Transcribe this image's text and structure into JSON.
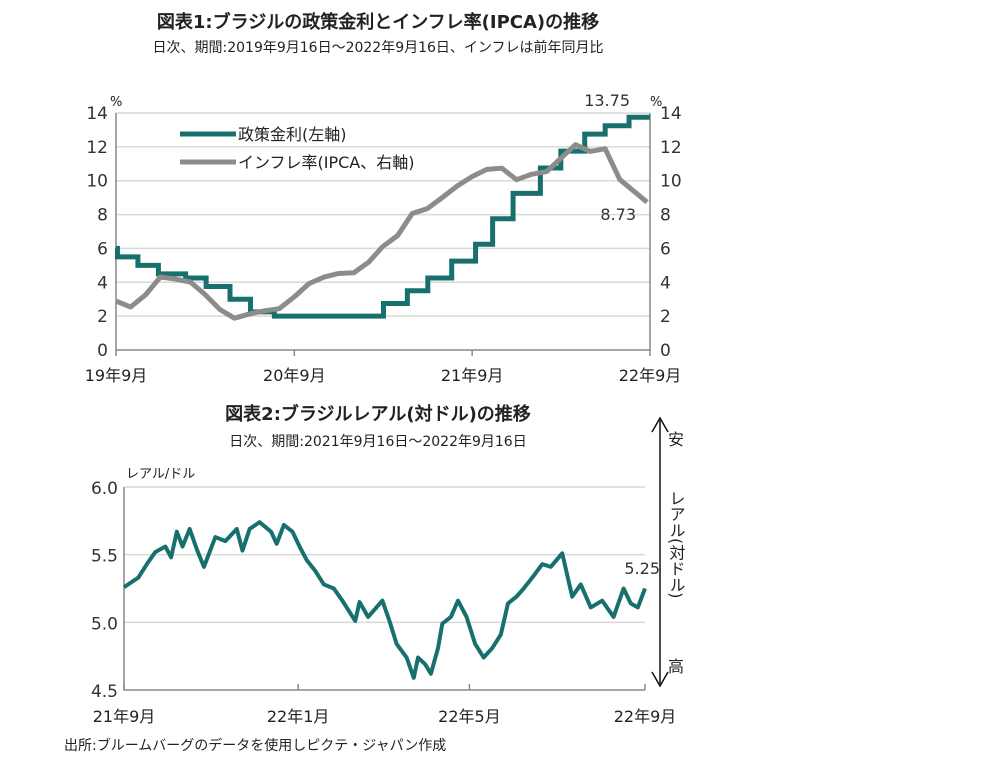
{
  "colors": {
    "policy_rate": "#17706e",
    "inflation": "#8c8c8c",
    "brl": "#17706e"
  },
  "chart_data": [
    {
      "type": "line",
      "title": "図表1:ブラジルの政策金利とインフレ率(IPCA)の推移",
      "subtitle": "日次、期間:2019年9月16日～2022年9月16日、インフレは前年同月比",
      "left_unit": "%",
      "right_unit": "%",
      "ylim": [
        0,
        14
      ],
      "yticks": [
        "0",
        "2",
        "4",
        "6",
        "8",
        "10",
        "12",
        "14"
      ],
      "xlim": [
        "2019-09-16",
        "2022-09-16"
      ],
      "xticks": [
        {
          "date": "2019-09-16",
          "label": "19年9月"
        },
        {
          "date": "2020-09-16",
          "label": "20年9月"
        },
        {
          "date": "2021-09-16",
          "label": "21年9月"
        },
        {
          "date": "2022-09-16",
          "label": "22年9月"
        }
      ],
      "grid": true,
      "legend_position": "top-left",
      "series": [
        {
          "name": "政策金利(左軸)",
          "axis": "left",
          "style": "step",
          "points": [
            [
              "2019-09-16",
              6.0
            ],
            [
              "2019-09-19",
              5.5
            ],
            [
              "2019-10-31",
              5.0
            ],
            [
              "2019-12-12",
              4.5
            ],
            [
              "2020-02-06",
              4.25
            ],
            [
              "2020-03-19",
              3.75
            ],
            [
              "2020-05-07",
              3.0
            ],
            [
              "2020-06-18",
              2.25
            ],
            [
              "2020-08-06",
              2.0
            ],
            [
              "2021-03-18",
              2.75
            ],
            [
              "2021-05-06",
              3.5
            ],
            [
              "2021-06-17",
              4.25
            ],
            [
              "2021-08-05",
              5.25
            ],
            [
              "2021-09-23",
              6.25
            ],
            [
              "2021-10-28",
              7.75
            ],
            [
              "2021-12-09",
              9.25
            ],
            [
              "2022-02-03",
              10.75
            ],
            [
              "2022-03-17",
              11.75
            ],
            [
              "2022-05-05",
              12.75
            ],
            [
              "2022-06-16",
              13.25
            ],
            [
              "2022-08-04",
              13.75
            ],
            [
              "2022-09-16",
              13.75
            ]
          ]
        },
        {
          "name": "インフレ率(IPCA、右軸)",
          "axis": "right",
          "style": "line",
          "points": [
            [
              "2019-09-16",
              2.89
            ],
            [
              "2019-10-16",
              2.54
            ],
            [
              "2019-11-16",
              3.27
            ],
            [
              "2019-12-16",
              4.31
            ],
            [
              "2020-01-16",
              4.19
            ],
            [
              "2020-02-16",
              4.01
            ],
            [
              "2020-03-16",
              3.3
            ],
            [
              "2020-04-16",
              2.4
            ],
            [
              "2020-05-16",
              1.88
            ],
            [
              "2020-06-16",
              2.13
            ],
            [
              "2020-07-16",
              2.31
            ],
            [
              "2020-08-16",
              2.44
            ],
            [
              "2020-09-16",
              3.14
            ],
            [
              "2020-10-16",
              3.92
            ],
            [
              "2020-11-16",
              4.31
            ],
            [
              "2020-12-16",
              4.52
            ],
            [
              "2021-01-16",
              4.56
            ],
            [
              "2021-02-16",
              5.2
            ],
            [
              "2021-03-16",
              6.1
            ],
            [
              "2021-04-16",
              6.76
            ],
            [
              "2021-05-16",
              8.06
            ],
            [
              "2021-06-16",
              8.35
            ],
            [
              "2021-07-16",
              8.99
            ],
            [
              "2021-08-16",
              9.68
            ],
            [
              "2021-09-16",
              10.25
            ],
            [
              "2021-10-16",
              10.67
            ],
            [
              "2021-11-16",
              10.74
            ],
            [
              "2021-12-16",
              10.06
            ],
            [
              "2022-01-16",
              10.38
            ],
            [
              "2022-02-16",
              10.54
            ],
            [
              "2022-03-16",
              11.3
            ],
            [
              "2022-04-16",
              12.13
            ],
            [
              "2022-05-16",
              11.73
            ],
            [
              "2022-06-16",
              11.89
            ],
            [
              "2022-07-16",
              10.07
            ],
            [
              "2022-09-10",
              8.73
            ]
          ]
        }
      ],
      "annotations": [
        "13.75",
        "8.73"
      ]
    },
    {
      "type": "line",
      "title": "図表2:ブラジルレアル(対ドル)の推移",
      "subtitle": "日次、期間:2021年9月16日～2022年9月16日",
      "ylabel": "レアル/ドル",
      "ylim": [
        4.5,
        6.0
      ],
      "yticks": [
        "4.5",
        "5.0",
        "5.5",
        "6.0"
      ],
      "xlim": [
        "2021-09-16",
        "2022-09-16"
      ],
      "xticks": [
        {
          "date": "2021-09-16",
          "label": "21年9月"
        },
        {
          "date": "2022-01-16",
          "label": "22年1月"
        },
        {
          "date": "2022-05-16",
          "label": "22年5月"
        },
        {
          "date": "2022-09-16",
          "label": "22年9月"
        }
      ],
      "grid": true,
      "series": [
        {
          "points": [
            [
              "2021-09-16",
              5.26
            ],
            [
              "2021-09-26",
              5.33
            ],
            [
              "2021-10-02",
              5.43
            ],
            [
              "2021-10-08",
              5.52
            ],
            [
              "2021-10-15",
              5.56
            ],
            [
              "2021-10-19",
              5.48
            ],
            [
              "2021-10-23",
              5.67
            ],
            [
              "2021-10-27",
              5.56
            ],
            [
              "2021-11-01",
              5.69
            ],
            [
              "2021-11-06",
              5.54
            ],
            [
              "2021-11-11",
              5.41
            ],
            [
              "2021-11-19",
              5.63
            ],
            [
              "2021-11-26",
              5.6
            ],
            [
              "2021-12-04",
              5.69
            ],
            [
              "2021-12-08",
              5.53
            ],
            [
              "2021-12-13",
              5.69
            ],
            [
              "2021-12-20",
              5.74
            ],
            [
              "2021-12-28",
              5.67
            ],
            [
              "2022-01-01",
              5.58
            ],
            [
              "2022-01-06",
              5.72
            ],
            [
              "2022-01-12",
              5.67
            ],
            [
              "2022-01-17",
              5.56
            ],
            [
              "2022-01-22",
              5.46
            ],
            [
              "2022-01-28",
              5.38
            ],
            [
              "2022-02-03",
              5.28
            ],
            [
              "2022-02-10",
              5.25
            ],
            [
              "2022-02-16",
              5.16
            ],
            [
              "2022-02-25",
              5.01
            ],
            [
              "2022-02-28",
              5.15
            ],
            [
              "2022-03-06",
              5.04
            ],
            [
              "2022-03-11",
              5.1
            ],
            [
              "2022-03-16",
              5.16
            ],
            [
              "2022-03-21",
              5.01
            ],
            [
              "2022-03-26",
              4.84
            ],
            [
              "2022-04-02",
              4.74
            ],
            [
              "2022-04-07",
              4.59
            ],
            [
              "2022-04-10",
              4.74
            ],
            [
              "2022-04-15",
              4.69
            ],
            [
              "2022-04-19",
              4.62
            ],
            [
              "2022-04-24",
              4.81
            ],
            [
              "2022-04-27",
              4.99
            ],
            [
              "2022-05-03",
              5.04
            ],
            [
              "2022-05-08",
              5.16
            ],
            [
              "2022-05-14",
              5.04
            ],
            [
              "2022-05-20",
              4.84
            ],
            [
              "2022-05-26",
              4.74
            ],
            [
              "2022-06-01",
              4.81
            ],
            [
              "2022-06-07",
              4.91
            ],
            [
              "2022-06-12",
              5.14
            ],
            [
              "2022-06-18",
              5.19
            ],
            [
              "2022-06-23",
              5.25
            ],
            [
              "2022-06-29",
              5.33
            ],
            [
              "2022-07-06",
              5.43
            ],
            [
              "2022-07-12",
              5.41
            ],
            [
              "2022-07-20",
              5.51
            ],
            [
              "2022-07-27",
              5.19
            ],
            [
              "2022-08-02",
              5.28
            ],
            [
              "2022-08-09",
              5.11
            ],
            [
              "2022-08-17",
              5.16
            ],
            [
              "2022-08-25",
              5.04
            ],
            [
              "2022-09-01",
              5.25
            ],
            [
              "2022-09-06",
              5.14
            ],
            [
              "2022-09-11",
              5.11
            ],
            [
              "2022-09-16",
              5.25
            ]
          ]
        }
      ],
      "annotations": [
        "5.25"
      ],
      "side_scale": {
        "top": "安",
        "label": "レアル(対ドル)",
        "bottom": "高"
      }
    }
  ],
  "source": "出所:ブルームバーグのデータを使用しピクテ・ジャパン作成"
}
